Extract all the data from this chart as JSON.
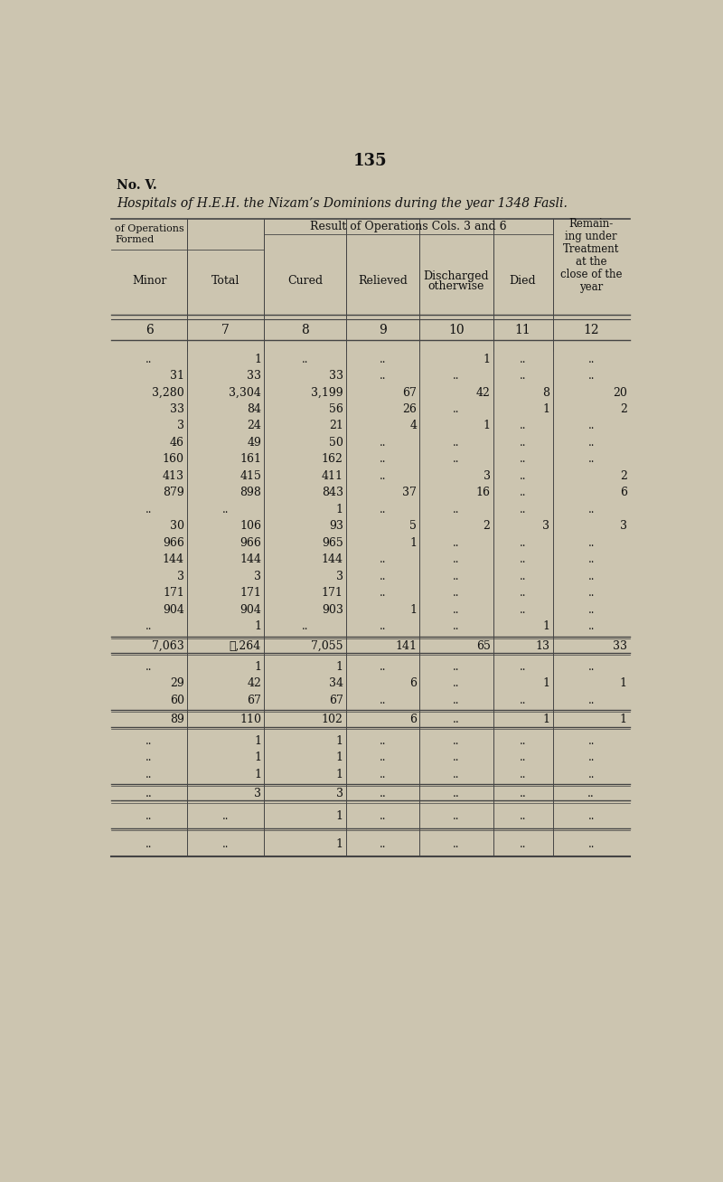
{
  "page_number": "135",
  "no_label": "No. V.",
  "subtitle": "Hospitals of H.E.H. the Nizam’s Dominions during the year 1348 Fasli.",
  "bg_color": "#ccc5b0",
  "text_color": "#111111",
  "col_numbers": [
    "6",
    "7",
    "8",
    "9",
    "10",
    "11",
    "12"
  ],
  "sub_headers": [
    "Minor",
    "Total",
    "Cured",
    "Relieved",
    "Discharged\notherwise",
    "Died"
  ],
  "rows": [
    [
      "..",
      "1",
      "..",
      "..",
      "1",
      "..",
      ".."
    ],
    [
      "31",
      "33",
      "33",
      "..",
      "..",
      "..",
      ".."
    ],
    [
      "3,280",
      "3,304",
      "3,199",
      "67",
      "42",
      "8",
      "20"
    ],
    [
      "33",
      "84",
      "56",
      "26",
      "..",
      "1",
      "2"
    ],
    [
      "3",
      "24",
      "21",
      "4",
      "1",
      "..",
      ".."
    ],
    [
      "46",
      "49",
      "50",
      "..",
      "..",
      "..",
      ".."
    ],
    [
      "160",
      "161",
      "162",
      "..",
      "..",
      "..",
      ".."
    ],
    [
      "413",
      "415",
      "411",
      "..",
      "3",
      "..",
      "2"
    ],
    [
      "879",
      "898",
      "843",
      "37",
      "16",
      "..",
      "6"
    ],
    [
      "..",
      "..",
      "1",
      "..",
      "..",
      "..",
      ".."
    ],
    [
      "30",
      "106",
      "93",
      "5",
      "2",
      "3",
      "3"
    ],
    [
      "966",
      "966",
      "965",
      "1",
      "..",
      "..",
      ".."
    ],
    [
      "144",
      "144",
      "144",
      "..",
      "..",
      "..",
      ".."
    ],
    [
      "3",
      "3",
      "3",
      "..",
      "..",
      "..",
      ".."
    ],
    [
      "171",
      "171",
      "171",
      "..",
      "..",
      "..",
      ".."
    ],
    [
      "904",
      "904",
      "903",
      "1",
      "..",
      "..",
      ".."
    ],
    [
      "..",
      "1",
      "..",
      "..",
      "..",
      "1",
      ".."
    ]
  ],
  "subtotal_row": [
    "7,063",
    "ℓ,264",
    "7,055",
    "141",
    "65",
    "13",
    "33"
  ],
  "rows2": [
    [
      "..",
      "1",
      "1",
      "..",
      "..",
      "..",
      ".."
    ],
    [
      "29",
      "42",
      "34",
      "6",
      "..",
      "1",
      "1"
    ],
    [
      "60",
      "67",
      "67",
      "..",
      "..",
      "..",
      ".."
    ]
  ],
  "subtotal_row2": [
    "89",
    "110",
    "102",
    "6",
    "..",
    "1",
    "1"
  ],
  "rows3": [
    [
      "..",
      "1",
      "1",
      "..",
      "..",
      "..",
      ".."
    ],
    [
      "..",
      "1",
      "1",
      "..",
      "..",
      "..",
      ".."
    ],
    [
      "..",
      "1",
      "1",
      "..",
      "..",
      "..",
      ".."
    ]
  ],
  "subtotal_row3": [
    "..",
    "3",
    "3",
    "..",
    "..",
    "..",
    ".."
  ],
  "rows4": [
    [
      "..",
      "..",
      "1",
      "..",
      "..",
      "..",
      ".."
    ]
  ],
  "rows5": [
    [
      "..",
      "..",
      "1",
      "..",
      "..",
      "..",
      ".."
    ]
  ]
}
